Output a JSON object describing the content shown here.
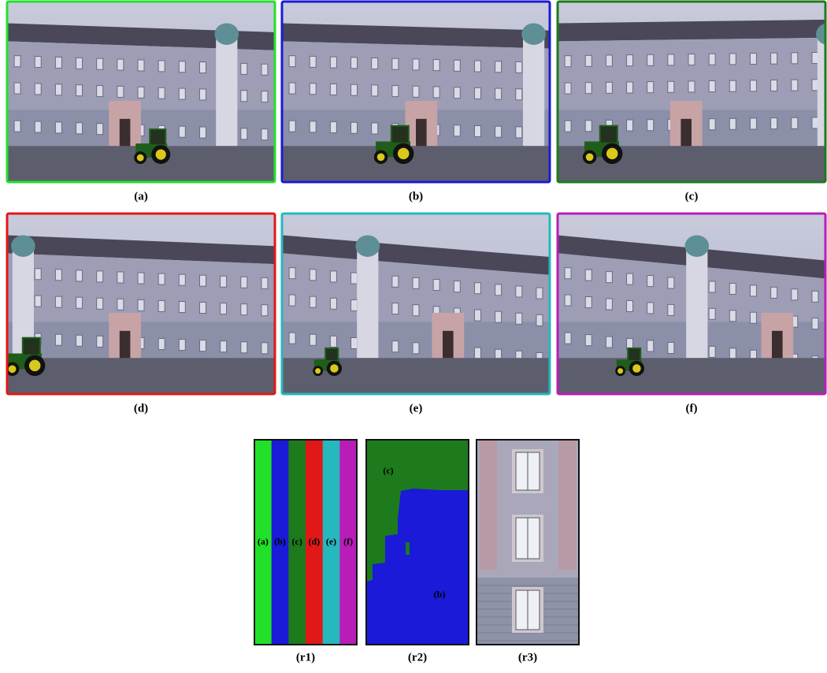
{
  "figure": {
    "panels": [
      {
        "label": "(a)",
        "color": "#22e02a"
      },
      {
        "label": "(b)",
        "color": "#1a1ad8"
      },
      {
        "label": "(c)",
        "color": "#1d7a1d"
      },
      {
        "label": "(d)",
        "color": "#e01818"
      },
      {
        "label": "(e)",
        "color": "#25b8bc"
      },
      {
        "label": "(f)",
        "color": "#b81db8"
      }
    ],
    "composite": {
      "label": "(r1)",
      "stripes": [
        "(a)",
        "(b)",
        "(c)",
        "(d)",
        "(e)",
        "(f)"
      ]
    },
    "segmentation": {
      "label": "(r2)",
      "regions": [
        "(c)",
        "(b)"
      ]
    },
    "crop": {
      "label": "(r3)"
    }
  }
}
